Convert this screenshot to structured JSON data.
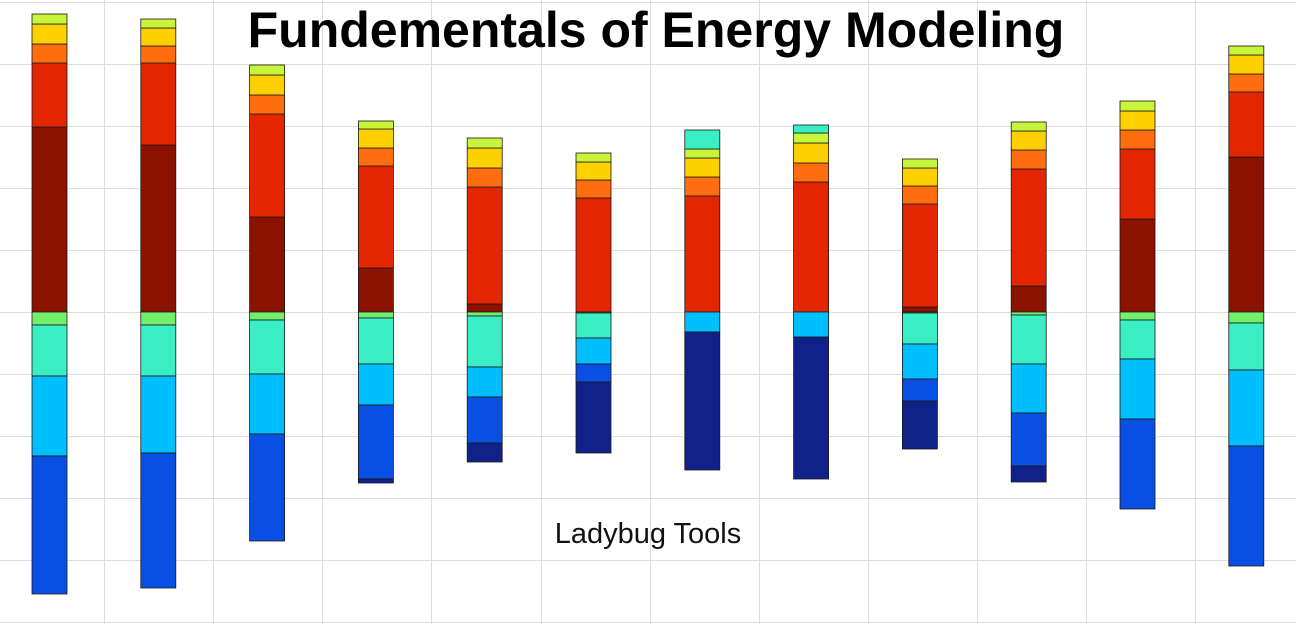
{
  "title": "Fundementals of Energy Modeling",
  "subtitle": "Ladybug Tools",
  "chart_data": {
    "type": "bar",
    "stacked": "diverging",
    "bar_count": 12,
    "grid": true,
    "legend": "none",
    "colors": [
      "#0a4fe3",
      "#00bfff",
      "#3aefc4",
      "#74ef6c",
      "#8c1200",
      "#e32600",
      "#ff6e0e",
      "#ffd000",
      "#c7f53a",
      "#10228a"
    ],
    "gain_layers": [
      {
        "color": "#8c1200",
        "values": [
          185,
          167,
          95,
          44,
          8,
          0,
          0,
          0,
          5,
          26,
          93,
          155
        ]
      },
      {
        "color": "#e32600",
        "values": [
          64,
          82,
          103,
          102,
          117,
          114,
          116,
          130,
          103,
          117,
          70,
          65
        ]
      },
      {
        "color": "#ff6e0e",
        "values": [
          19,
          17,
          19,
          18,
          19,
          18,
          19,
          19,
          18,
          19,
          19,
          18
        ]
      },
      {
        "color": "#ffd000",
        "values": [
          20,
          18,
          20,
          19,
          20,
          18,
          19,
          20,
          18,
          19,
          19,
          19
        ]
      },
      {
        "color": "#c7f53a",
        "values": [
          10,
          9,
          10,
          8,
          10,
          9,
          9,
          10,
          9,
          9,
          10,
          9
        ]
      },
      {
        "color": "#3aefc4",
        "values": [
          0,
          0,
          0,
          0,
          0,
          0,
          19,
          8,
          0,
          0,
          0,
          0
        ]
      }
    ],
    "loss_layers": [
      {
        "color": "#74ef6c",
        "values": [
          13,
          13,
          8,
          6,
          4,
          1,
          0,
          0,
          1,
          3,
          8,
          11
        ]
      },
      {
        "color": "#3aefc4",
        "values": [
          51,
          51,
          54,
          46,
          51,
          25,
          0,
          0,
          31,
          49,
          39,
          47
        ]
      },
      {
        "color": "#00bfff",
        "values": [
          80,
          77,
          60,
          41,
          30,
          26,
          20,
          25,
          35,
          49,
          60,
          76
        ]
      },
      {
        "color": "#0a4fe3",
        "values": [
          138,
          135,
          107,
          74,
          46,
          18,
          0,
          0,
          22,
          53,
          90,
          120
        ]
      },
      {
        "color": "#10228a",
        "values": [
          0,
          0,
          0,
          4,
          19,
          71,
          138,
          142,
          48,
          16,
          0,
          0
        ]
      }
    ]
  }
}
